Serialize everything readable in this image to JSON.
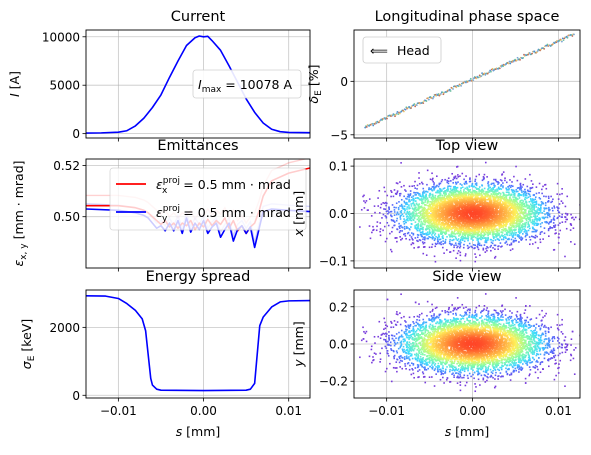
{
  "chart_data": [
    {
      "id": "current",
      "type": "line",
      "title": "Current",
      "ylabel": "I [A]",
      "xlim": [
        -0.0138,
        0.0125
      ],
      "ylim": [
        -450,
        10700
      ],
      "yticks": [
        0,
        5000,
        10000
      ],
      "yticklabels": [
        "0",
        "5000",
        "10000"
      ],
      "grid": true,
      "series": [
        {
          "color": "#0000ff",
          "x": [
            -0.0138,
            -0.012,
            -0.01,
            -0.009,
            -0.008,
            -0.007,
            -0.006,
            -0.005,
            -0.004,
            -0.003,
            -0.002,
            -0.001,
            -0.0005,
            0.0,
            0.0005,
            0.001,
            0.002,
            0.003,
            0.004,
            0.005,
            0.006,
            0.007,
            0.008,
            0.009,
            0.01,
            0.0125
          ],
          "y": [
            60,
            80,
            150,
            300,
            800,
            1600,
            2700,
            4000,
            5800,
            7500,
            9100,
            9900,
            10078,
            10000,
            10050,
            9600,
            8600,
            7000,
            5300,
            3600,
            2200,
            1100,
            450,
            200,
            120,
            100
          ]
        }
      ],
      "annotation": {
        "text": "I",
        "sub": "max",
        "value": "= 10078 A"
      }
    },
    {
      "id": "phase",
      "type": "scatter",
      "title": "Longitudinal phase space",
      "ylabel": "δ_E [%]",
      "xlim": [
        -0.0138,
        0.0125
      ],
      "ylim": [
        -5.3,
        4.8
      ],
      "yticks": [
        -5,
        0
      ],
      "yticklabels": [
        "−5",
        "0"
      ],
      "grid": true,
      "line": {
        "x0": -0.0125,
        "y0": -4.3,
        "x1": 0.0118,
        "y1": 4.4
      },
      "legend": {
        "label": "Head",
        "arrow": "⟸",
        "placement": "top-left"
      }
    },
    {
      "id": "emittance",
      "type": "line",
      "title": "Emittances",
      "ylabel": "ε_{x,y} [mm · mrad]",
      "xlim": [
        -0.0138,
        0.0125
      ],
      "ylim": [
        0.48,
        0.5225
      ],
      "yticks": [
        0.5,
        0.52
      ],
      "yticklabels": [
        "0.50",
        "0.52"
      ],
      "grid": true,
      "legend_placement": "top-center",
      "series": [
        {
          "name_main": "ε",
          "name_sub": "x",
          "name_sup": "proj",
          "name_value": "= 0.5 mm · mrad",
          "color": "#ff0000",
          "x": [
            -0.0138,
            -0.01,
            -0.008,
            -0.007,
            -0.0065,
            -0.006,
            -0.0055,
            -0.005,
            -0.0045,
            -0.004,
            -0.0035,
            -0.003,
            -0.0025,
            -0.002,
            -0.0015,
            -0.001,
            -0.0005,
            0.0,
            0.0005,
            0.001,
            0.0015,
            0.002,
            0.0025,
            0.003,
            0.0035,
            0.004,
            0.0045,
            0.005,
            0.0055,
            0.006,
            0.0065,
            0.007,
            0.008,
            0.01,
            0.0125
          ],
          "y": [
            0.5043,
            0.5043,
            0.5035,
            0.5025,
            0.5015,
            0.5,
            0.4985,
            0.497,
            0.4985,
            0.496,
            0.4975,
            0.4955,
            0.4975,
            0.4965,
            0.4985,
            0.495,
            0.4975,
            0.496,
            0.499,
            0.4965,
            0.4985,
            0.497,
            0.4995,
            0.4955,
            0.4985,
            0.4945,
            0.4965,
            0.4935,
            0.496,
            0.4975,
            0.502,
            0.508,
            0.514,
            0.517,
            0.519
          ]
        },
        {
          "name_main": "ε",
          "name_sub": "y",
          "name_sup": "proj",
          "name_value": "= 0.5 mm · mrad",
          "color": "#0000ff",
          "x": [
            -0.0138,
            -0.01,
            -0.008,
            -0.007,
            -0.0065,
            -0.006,
            -0.0055,
            -0.005,
            -0.0045,
            -0.004,
            -0.0035,
            -0.003,
            -0.0025,
            -0.002,
            -0.0015,
            -0.001,
            -0.0005,
            0.0,
            0.0005,
            0.001,
            0.0015,
            0.002,
            0.0025,
            0.003,
            0.0035,
            0.004,
            0.0045,
            0.005,
            0.0055,
            0.006,
            0.0065,
            0.007,
            0.008,
            0.01,
            0.0125
          ],
          "y": [
            0.503,
            0.5025,
            0.5015,
            0.5005,
            0.4995,
            0.4975,
            0.4955,
            0.4965,
            0.4945,
            0.4975,
            0.4945,
            0.4985,
            0.4935,
            0.4995,
            0.494,
            0.4975,
            0.495,
            0.4985,
            0.4935,
            0.496,
            0.4975,
            0.492,
            0.495,
            0.4975,
            0.4905,
            0.495,
            0.4965,
            0.4935,
            0.496,
            0.488,
            0.495,
            0.502,
            0.503,
            0.5025,
            0.502
          ]
        }
      ]
    },
    {
      "id": "topview",
      "type": "scatter",
      "title": "Top view",
      "ylabel": "x [mm]",
      "xlim": [
        -0.0138,
        0.0125
      ],
      "ylim": [
        -0.115,
        0.115
      ],
      "yticks": [
        -0.1,
        0.0,
        0.1
      ],
      "yticklabels": [
        "−0.1",
        "0.0",
        "0.1"
      ],
      "grid": true,
      "sigma_x": 0.0042,
      "sigma_y": 0.03,
      "points": 5500
    },
    {
      "id": "energy",
      "type": "line",
      "title": "Energy spread",
      "ylabel": "σ_E [keV]",
      "xlabel": "s [mm]",
      "xlim": [
        -0.0138,
        0.0125
      ],
      "ylim": [
        -80,
        3100
      ],
      "yticks": [
        0,
        2000
      ],
      "yticklabels": [
        "0",
        "2000"
      ],
      "xticks": [
        -0.01,
        0.0,
        0.01
      ],
      "xticklabels": [
        "−0.01",
        "0.00",
        "0.01"
      ],
      "grid": true,
      "series": [
        {
          "color": "#0000ff",
          "x": [
            -0.0138,
            -0.0115,
            -0.01,
            -0.009,
            -0.008,
            -0.0072,
            -0.0068,
            -0.0065,
            -0.0062,
            -0.006,
            -0.0055,
            -0.005,
            0.0,
            0.005,
            0.0055,
            0.006,
            0.0063,
            0.0066,
            0.007,
            0.008,
            0.009,
            0.01,
            0.0125
          ],
          "y": [
            2930,
            2920,
            2850,
            2700,
            2500,
            2250,
            1900,
            1200,
            500,
            300,
            180,
            150,
            140,
            150,
            180,
            350,
            1200,
            2050,
            2300,
            2600,
            2750,
            2780,
            2790
          ]
        }
      ]
    },
    {
      "id": "sideview",
      "type": "scatter",
      "title": "Side view",
      "ylabel": "y [mm]",
      "xlabel": "s [mm]",
      "xlim": [
        -0.0138,
        0.0125
      ],
      "ylim": [
        -0.29,
        0.29
      ],
      "yticks": [
        -0.2,
        0.0,
        0.2
      ],
      "yticklabels": [
        "−0.2",
        "0.0",
        "0.2"
      ],
      "xticks": [
        -0.01,
        0.0,
        0.01
      ],
      "xticklabels": [
        "−0.01",
        "0.00",
        "0.01"
      ],
      "grid": true,
      "sigma_x": 0.0042,
      "sigma_y": 0.075,
      "points": 5500
    }
  ]
}
